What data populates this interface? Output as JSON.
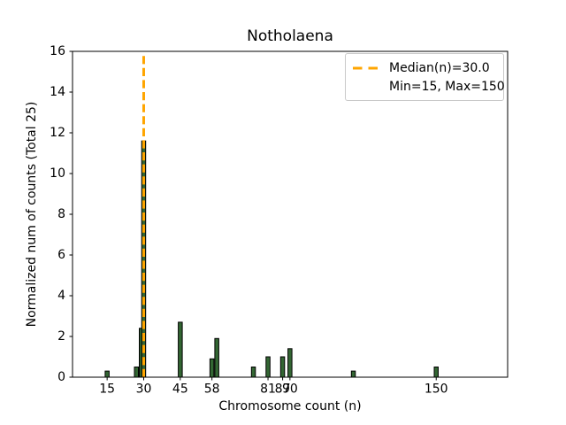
{
  "window": {
    "background_color": "#ffffff"
  },
  "chart_data": {
    "type": "bar",
    "title": "Notholaena",
    "xlabel": "Chromosome count (n)",
    "ylabel": "Normalized num of counts    (Total 25)",
    "x": [
      15,
      27,
      29,
      30,
      45,
      58,
      60,
      75,
      81,
      87,
      90,
      116,
      150
    ],
    "values": [
      0.3,
      0.5,
      2.4,
      11.6,
      2.7,
      0.9,
      1.9,
      0.5,
      1.0,
      1.0,
      1.4,
      0.3,
      0.5
    ],
    "xticks": [
      15,
      30,
      45,
      58,
      81,
      87,
      90,
      150
    ],
    "yticks": [
      0,
      2,
      4,
      6,
      8,
      10,
      12,
      14,
      16
    ],
    "xlim": [
      0.8,
      179.3
    ],
    "ylim": [
      0,
      16
    ],
    "grid": false,
    "bar_color": "#336633",
    "bar_edge_color": "#000000",
    "median_line": {
      "x": 30,
      "value_label": "30.0",
      "color": "#ffa500",
      "style": "dashed"
    },
    "legend": {
      "position": "upper right",
      "entries": [
        {
          "handle": "dashed-line",
          "color": "#ffa500",
          "label": "Median(n)=30.0"
        },
        {
          "handle": "none",
          "color": "",
          "label": "Min=15, Max=150"
        }
      ]
    }
  }
}
